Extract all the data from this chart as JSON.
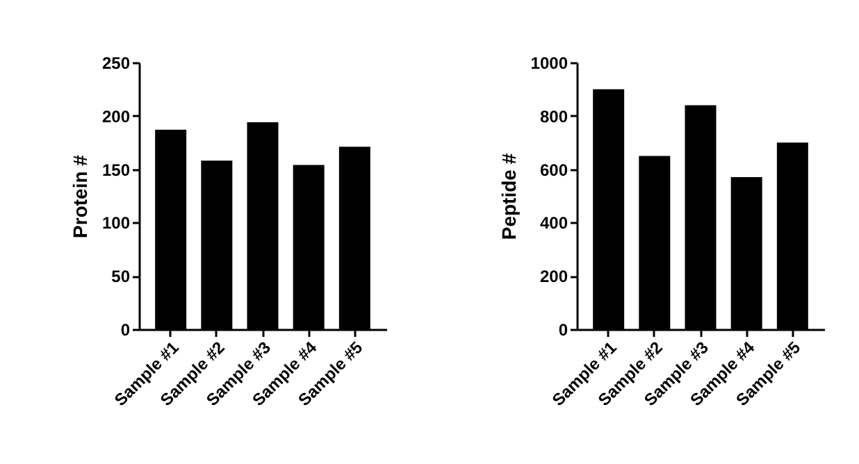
{
  "chart_data": [
    {
      "type": "bar",
      "ylabel": "Protein #",
      "categories": [
        "Sample #1",
        "Sample #2",
        "Sample #3",
        "Sample #4",
        "Sample #5"
      ],
      "values": [
        187,
        158,
        194,
        154,
        171
      ],
      "color": "#000000",
      "ylim": [
        0,
        250
      ],
      "yticks": [
        0,
        50,
        100,
        150,
        200,
        250
      ],
      "grid": false
    },
    {
      "type": "bar",
      "ylabel": "Peptide #",
      "categories": [
        "Sample #1",
        "Sample #2",
        "Sample #3",
        "Sample #4",
        "Sample #5"
      ],
      "values": [
        900,
        650,
        840,
        570,
        700
      ],
      "color": "#000000",
      "ylim": [
        0,
        1000
      ],
      "yticks": [
        0,
        200,
        400,
        600,
        800,
        1000
      ],
      "grid": false
    }
  ]
}
